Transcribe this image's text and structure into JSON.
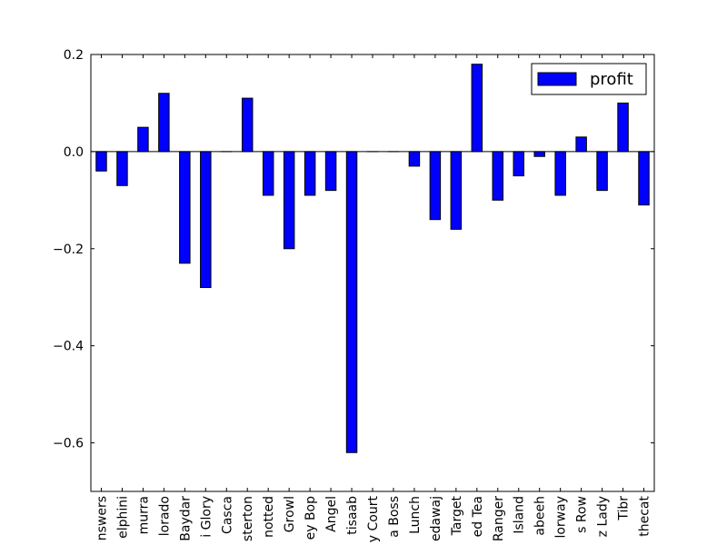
{
  "chart_data": {
    "type": "bar",
    "categories": [
      "nswers",
      "elphini",
      "murra",
      "lorado",
      "Baydar",
      "i Glory",
      "Casca",
      "sterton",
      "notted",
      "Growl",
      "ey Bop",
      "Angel",
      "tisaab",
      "y Court",
      "a Boss",
      "Lunch",
      "edawaj",
      "Target",
      "ed Tea",
      "Ranger",
      "Island",
      "abeeh",
      "lorway",
      "s Row",
      "z Lady",
      "Tibr",
      "thecat"
    ],
    "series": [
      {
        "name": "profit",
        "color": "#0000ff",
        "values": [
          -0.04,
          -0.07,
          0.05,
          0.12,
          -0.23,
          -0.28,
          0.0,
          0.11,
          -0.09,
          -0.2,
          -0.09,
          -0.08,
          -0.62,
          0.0,
          0.0,
          -0.03,
          -0.14,
          -0.16,
          0.18,
          -0.1,
          -0.05,
          -0.01,
          -0.09,
          0.03,
          -0.08,
          0.1,
          -0.11
        ]
      }
    ],
    "ylim": [
      -0.7,
      0.2
    ],
    "yticks": [
      0.2,
      0.0,
      -0.2,
      -0.4,
      -0.6
    ],
    "ytick_labels": [
      "0.2",
      "0.0",
      "−0.2",
      "−0.4",
      "−0.6"
    ],
    "legend_position": "top-right",
    "grid": false
  }
}
